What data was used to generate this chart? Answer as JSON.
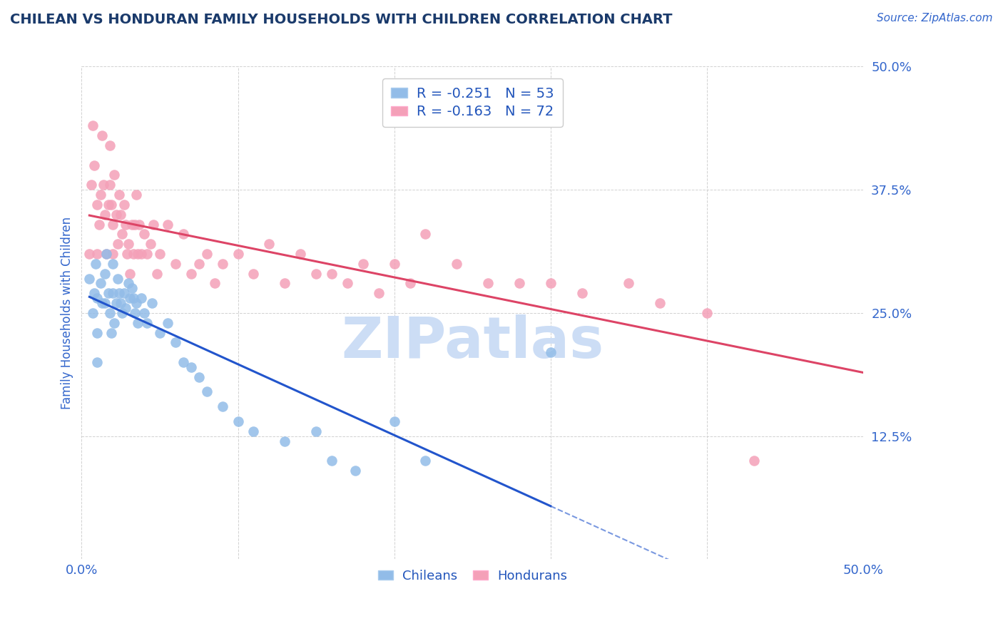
{
  "title": "CHILEAN VS HONDURAN FAMILY HOUSEHOLDS WITH CHILDREN CORRELATION CHART",
  "source_text": "Source: ZipAtlas.com",
  "ylabel": "Family Households with Children",
  "xlim": [
    0.0,
    0.5
  ],
  "ylim": [
    0.0,
    0.5
  ],
  "xtick_positions": [
    0.0,
    0.1,
    0.2,
    0.3,
    0.4,
    0.5
  ],
  "ytick_positions": [
    0.0,
    0.125,
    0.25,
    0.375,
    0.5
  ],
  "xticklabels": [
    "0.0%",
    "",
    "",
    "",
    "",
    "50.0%"
  ],
  "yticklabels": [
    "",
    "12.5%",
    "25.0%",
    "37.5%",
    "50.0%"
  ],
  "chilean_R": -0.251,
  "chilean_N": 53,
  "honduran_R": -0.163,
  "honduran_N": 72,
  "chilean_color": "#92bce8",
  "honduran_color": "#f4a0b8",
  "chilean_line_color": "#2255cc",
  "honduran_line_color": "#dd4466",
  "watermark": "ZIPatlas",
  "watermark_color": "#ccddf5",
  "legend_color": "#2255bb",
  "title_color": "#1a3a6b",
  "tick_color": "#3366cc",
  "background_color": "#ffffff",
  "grid_color": "#cccccc",
  "chilean_x": [
    0.005,
    0.007,
    0.008,
    0.009,
    0.01,
    0.01,
    0.01,
    0.012,
    0.013,
    0.015,
    0.015,
    0.016,
    0.017,
    0.018,
    0.019,
    0.02,
    0.02,
    0.021,
    0.022,
    0.023,
    0.024,
    0.025,
    0.026,
    0.027,
    0.028,
    0.03,
    0.031,
    0.032,
    0.033,
    0.034,
    0.035,
    0.036,
    0.038,
    0.04,
    0.042,
    0.045,
    0.05,
    0.055,
    0.06,
    0.065,
    0.07,
    0.075,
    0.08,
    0.09,
    0.1,
    0.11,
    0.13,
    0.15,
    0.16,
    0.175,
    0.2,
    0.22,
    0.3
  ],
  "chilean_y": [
    0.285,
    0.25,
    0.27,
    0.3,
    0.265,
    0.23,
    0.2,
    0.28,
    0.26,
    0.29,
    0.26,
    0.31,
    0.27,
    0.25,
    0.23,
    0.3,
    0.27,
    0.24,
    0.26,
    0.285,
    0.27,
    0.26,
    0.25,
    0.27,
    0.255,
    0.28,
    0.265,
    0.275,
    0.265,
    0.25,
    0.26,
    0.24,
    0.265,
    0.25,
    0.24,
    0.26,
    0.23,
    0.24,
    0.22,
    0.2,
    0.195,
    0.185,
    0.17,
    0.155,
    0.14,
    0.13,
    0.12,
    0.13,
    0.1,
    0.09,
    0.14,
    0.1,
    0.21
  ],
  "honduran_x": [
    0.005,
    0.006,
    0.007,
    0.008,
    0.01,
    0.01,
    0.011,
    0.012,
    0.013,
    0.014,
    0.015,
    0.016,
    0.017,
    0.018,
    0.018,
    0.019,
    0.02,
    0.02,
    0.021,
    0.022,
    0.023,
    0.024,
    0.025,
    0.026,
    0.027,
    0.028,
    0.029,
    0.03,
    0.031,
    0.032,
    0.033,
    0.034,
    0.035,
    0.036,
    0.037,
    0.038,
    0.04,
    0.042,
    0.044,
    0.046,
    0.048,
    0.05,
    0.055,
    0.06,
    0.065,
    0.07,
    0.075,
    0.08,
    0.085,
    0.09,
    0.1,
    0.11,
    0.12,
    0.13,
    0.14,
    0.15,
    0.16,
    0.17,
    0.18,
    0.19,
    0.2,
    0.21,
    0.22,
    0.24,
    0.26,
    0.28,
    0.3,
    0.32,
    0.35,
    0.37,
    0.4,
    0.43
  ],
  "honduran_y": [
    0.31,
    0.38,
    0.44,
    0.4,
    0.36,
    0.31,
    0.34,
    0.37,
    0.43,
    0.38,
    0.35,
    0.31,
    0.36,
    0.38,
    0.42,
    0.36,
    0.31,
    0.34,
    0.39,
    0.35,
    0.32,
    0.37,
    0.35,
    0.33,
    0.36,
    0.34,
    0.31,
    0.32,
    0.29,
    0.34,
    0.31,
    0.34,
    0.37,
    0.31,
    0.34,
    0.31,
    0.33,
    0.31,
    0.32,
    0.34,
    0.29,
    0.31,
    0.34,
    0.3,
    0.33,
    0.29,
    0.3,
    0.31,
    0.28,
    0.3,
    0.31,
    0.29,
    0.32,
    0.28,
    0.31,
    0.29,
    0.29,
    0.28,
    0.3,
    0.27,
    0.3,
    0.28,
    0.33,
    0.3,
    0.28,
    0.28,
    0.28,
    0.27,
    0.28,
    0.26,
    0.25,
    0.1
  ]
}
